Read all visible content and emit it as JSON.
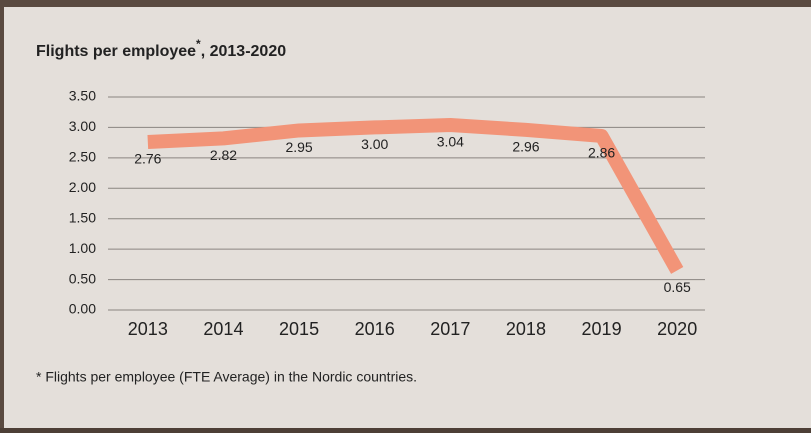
{
  "chart_data": {
    "type": "line",
    "title": "Flights per employee",
    "title_superscript": "*",
    "title_suffix": ", 2013-2020",
    "footnote": "* Flights per employee (FTE Average) in the Nordic countries.",
    "categories": [
      "2013",
      "2014",
      "2015",
      "2016",
      "2017",
      "2018",
      "2019",
      "2020"
    ],
    "series": [
      {
        "name": "Flights per employee",
        "color": "#f29478",
        "values": [
          2.76,
          2.82,
          2.95,
          3.0,
          3.04,
          2.96,
          2.86,
          0.65
        ],
        "value_labels": [
          "2.76",
          "2.82",
          "2.95",
          "3.00",
          "3.04",
          "2.96",
          "2.86",
          "0.65"
        ]
      }
    ],
    "ylim": [
      0,
      3.5
    ],
    "yticks": [
      {
        "value": 0,
        "label": "0.00"
      },
      {
        "value": 0.5,
        "label": "0.50"
      },
      {
        "value": 1,
        "label": "1.00"
      },
      {
        "value": 1.5,
        "label": "1.50"
      },
      {
        "value": 2,
        "label": "2.00"
      },
      {
        "value": 2.5,
        "label": "2.50"
      },
      {
        "value": 3,
        "label": "3.00"
      },
      {
        "value": 3.5,
        "label": "3.50"
      }
    ],
    "grid": true
  }
}
